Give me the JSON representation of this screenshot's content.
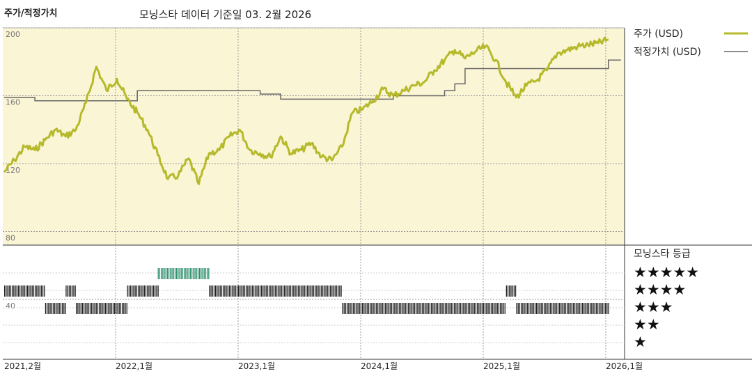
{
  "header": {
    "left_title": "주가/적정가치",
    "center_title": "모닝스타 데이터 기준일 03. 2월 2026"
  },
  "colors": {
    "price": "#b5b92a",
    "fair_value": "#666666",
    "top_band": "#faf5d4",
    "rating_dark": "#222222",
    "rating_green": "#2d8f6b"
  },
  "chart_data": {
    "type": "line",
    "y_ticks": [
      "200",
      "160",
      "120",
      "80",
      "40"
    ],
    "ylim": [
      40,
      200
    ],
    "x_ticks": [
      "2021,2월",
      "2022,1월",
      "2023,1월",
      "2024,1월",
      "2025,1월",
      "2026,1월"
    ],
    "series": [
      {
        "name": "주가 (USD)",
        "points": [
          [
            "2021-02",
            115
          ],
          [
            "2021-03",
            122
          ],
          [
            "2021-04",
            130
          ],
          [
            "2021-05",
            128
          ],
          [
            "2021-06",
            134
          ],
          [
            "2021-07",
            140
          ],
          [
            "2021-08",
            136
          ],
          [
            "2021-09",
            140
          ],
          [
            "2021-10",
            156
          ],
          [
            "2021-11",
            177
          ],
          [
            "2021-12",
            163
          ],
          [
            "2022-01",
            170
          ],
          [
            "2022-02",
            158
          ],
          [
            "2022-03",
            150
          ],
          [
            "2022-04",
            140
          ],
          [
            "2022-05",
            125
          ],
          [
            "2022-06",
            111
          ],
          [
            "2022-07",
            113
          ],
          [
            "2022-08",
            123
          ],
          [
            "2022-09",
            108
          ],
          [
            "2022-10",
            126
          ],
          [
            "2022-11",
            128
          ],
          [
            "2022-12",
            136
          ],
          [
            "2023-01",
            140
          ],
          [
            "2023-02",
            128
          ],
          [
            "2023-03",
            126
          ],
          [
            "2023-04",
            124
          ],
          [
            "2023-05",
            136
          ],
          [
            "2023-06",
            126
          ],
          [
            "2023-07",
            128
          ],
          [
            "2023-08",
            132
          ],
          [
            "2023-09",
            124
          ],
          [
            "2023-10",
            122
          ],
          [
            "2023-11",
            130
          ],
          [
            "2023-12",
            150
          ],
          [
            "2024-01",
            152
          ],
          [
            "2024-02",
            157
          ],
          [
            "2024-03",
            164
          ],
          [
            "2024-04",
            160
          ],
          [
            "2024-05",
            163
          ],
          [
            "2024-06",
            166
          ],
          [
            "2024-07",
            168
          ],
          [
            "2024-08",
            175
          ],
          [
            "2024-09",
            181
          ],
          [
            "2024-10",
            187
          ],
          [
            "2024-11",
            182
          ],
          [
            "2024-12",
            186
          ],
          [
            "2025-01",
            189
          ],
          [
            "2025-02",
            181
          ],
          [
            "2025-03",
            168
          ],
          [
            "2025-04",
            159
          ],
          [
            "2025-05",
            166
          ],
          [
            "2025-06",
            169
          ],
          [
            "2025-07",
            175
          ],
          [
            "2025-08",
            185
          ],
          [
            "2025-09",
            187
          ],
          [
            "2025-10",
            189
          ],
          [
            "2025-11",
            190
          ],
          [
            "2025-12",
            191
          ],
          [
            "2026-01",
            193
          ]
        ]
      },
      {
        "name": "적정가치 (USD)",
        "points": [
          [
            "2021-02",
            159
          ],
          [
            "2021-05",
            157
          ],
          [
            "2021-12",
            157
          ],
          [
            "2022-03",
            163
          ],
          [
            "2023-02",
            163
          ],
          [
            "2023-03",
            161
          ],
          [
            "2023-05",
            158
          ],
          [
            "2023-12",
            158
          ],
          [
            "2024-04",
            160
          ],
          [
            "2024-09",
            163
          ],
          [
            "2024-10",
            167
          ],
          [
            "2024-11",
            176
          ],
          [
            "2025-12",
            176
          ],
          [
            "2026-01",
            181
          ]
        ]
      }
    ],
    "rating": {
      "title": "모닝스타 등급",
      "levels": [
        "★★★★★",
        "★★★★",
        "★★★",
        "★★",
        "★"
      ],
      "segments": [
        {
          "stars": 4,
          "start": "2021-02",
          "end": "2021-06"
        },
        {
          "stars": 3,
          "start": "2021-06",
          "end": "2021-08"
        },
        {
          "stars": 4,
          "start": "2021-08",
          "end": "2021-09"
        },
        {
          "stars": 3,
          "start": "2021-09",
          "end": "2022-02"
        },
        {
          "stars": 4,
          "start": "2022-02",
          "end": "2022-05"
        },
        {
          "stars": 5,
          "start": "2022-05",
          "end": "2022-10",
          "highlight": true
        },
        {
          "stars": 4,
          "start": "2022-10",
          "end": "2023-11"
        },
        {
          "stars": 3,
          "start": "2023-11",
          "end": "2025-03"
        },
        {
          "stars": 4,
          "start": "2025-03",
          "end": "2025-04"
        },
        {
          "stars": 3,
          "start": "2025-04",
          "end": "2026-01"
        }
      ]
    }
  }
}
